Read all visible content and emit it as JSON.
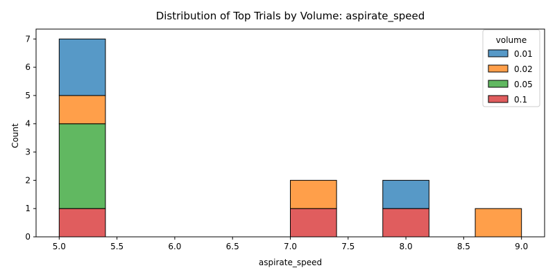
{
  "chart_data": {
    "type": "bar",
    "subtype": "stacked-histogram",
    "title": "Distribution of Top Trials by Volume: aspirate_speed",
    "xlabel": "aspirate_speed",
    "ylabel": "Count",
    "xlim": [
      4.8,
      9.2
    ],
    "ylim": [
      0,
      7.35
    ],
    "xticks": [
      5.0,
      5.5,
      6.0,
      6.5,
      7.0,
      7.5,
      8.0,
      8.5,
      9.0
    ],
    "yticks": [
      0,
      1,
      2,
      3,
      4,
      5,
      6,
      7
    ],
    "bin_edges": [
      5.0,
      5.4,
      5.8,
      6.2,
      6.6,
      7.0,
      7.4,
      7.8,
      8.2,
      8.6,
      9.0
    ],
    "stack_order": [
      "0.1",
      "0.05",
      "0.02",
      "0.01"
    ],
    "series": [
      {
        "name": "0.01",
        "color": "#1f77b4",
        "values": [
          2,
          0,
          0,
          0,
          0,
          0,
          0,
          1,
          0,
          0
        ]
      },
      {
        "name": "0.02",
        "color": "#ff7f0e",
        "values": [
          1,
          0,
          0,
          0,
          0,
          1,
          0,
          0,
          0,
          1
        ]
      },
      {
        "name": "0.05",
        "color": "#2ca02c",
        "values": [
          3,
          0,
          0,
          0,
          0,
          0,
          0,
          0,
          0,
          0
        ]
      },
      {
        "name": "0.1",
        "color": "#d62728",
        "values": [
          1,
          0,
          0,
          0,
          0,
          1,
          0,
          1,
          0,
          0
        ]
      }
    ],
    "legend": {
      "title": "volume",
      "placement": "top-right",
      "entries": [
        "0.01",
        "0.02",
        "0.05",
        "0.1"
      ]
    },
    "grid": false,
    "bar_alpha": 0.75
  }
}
